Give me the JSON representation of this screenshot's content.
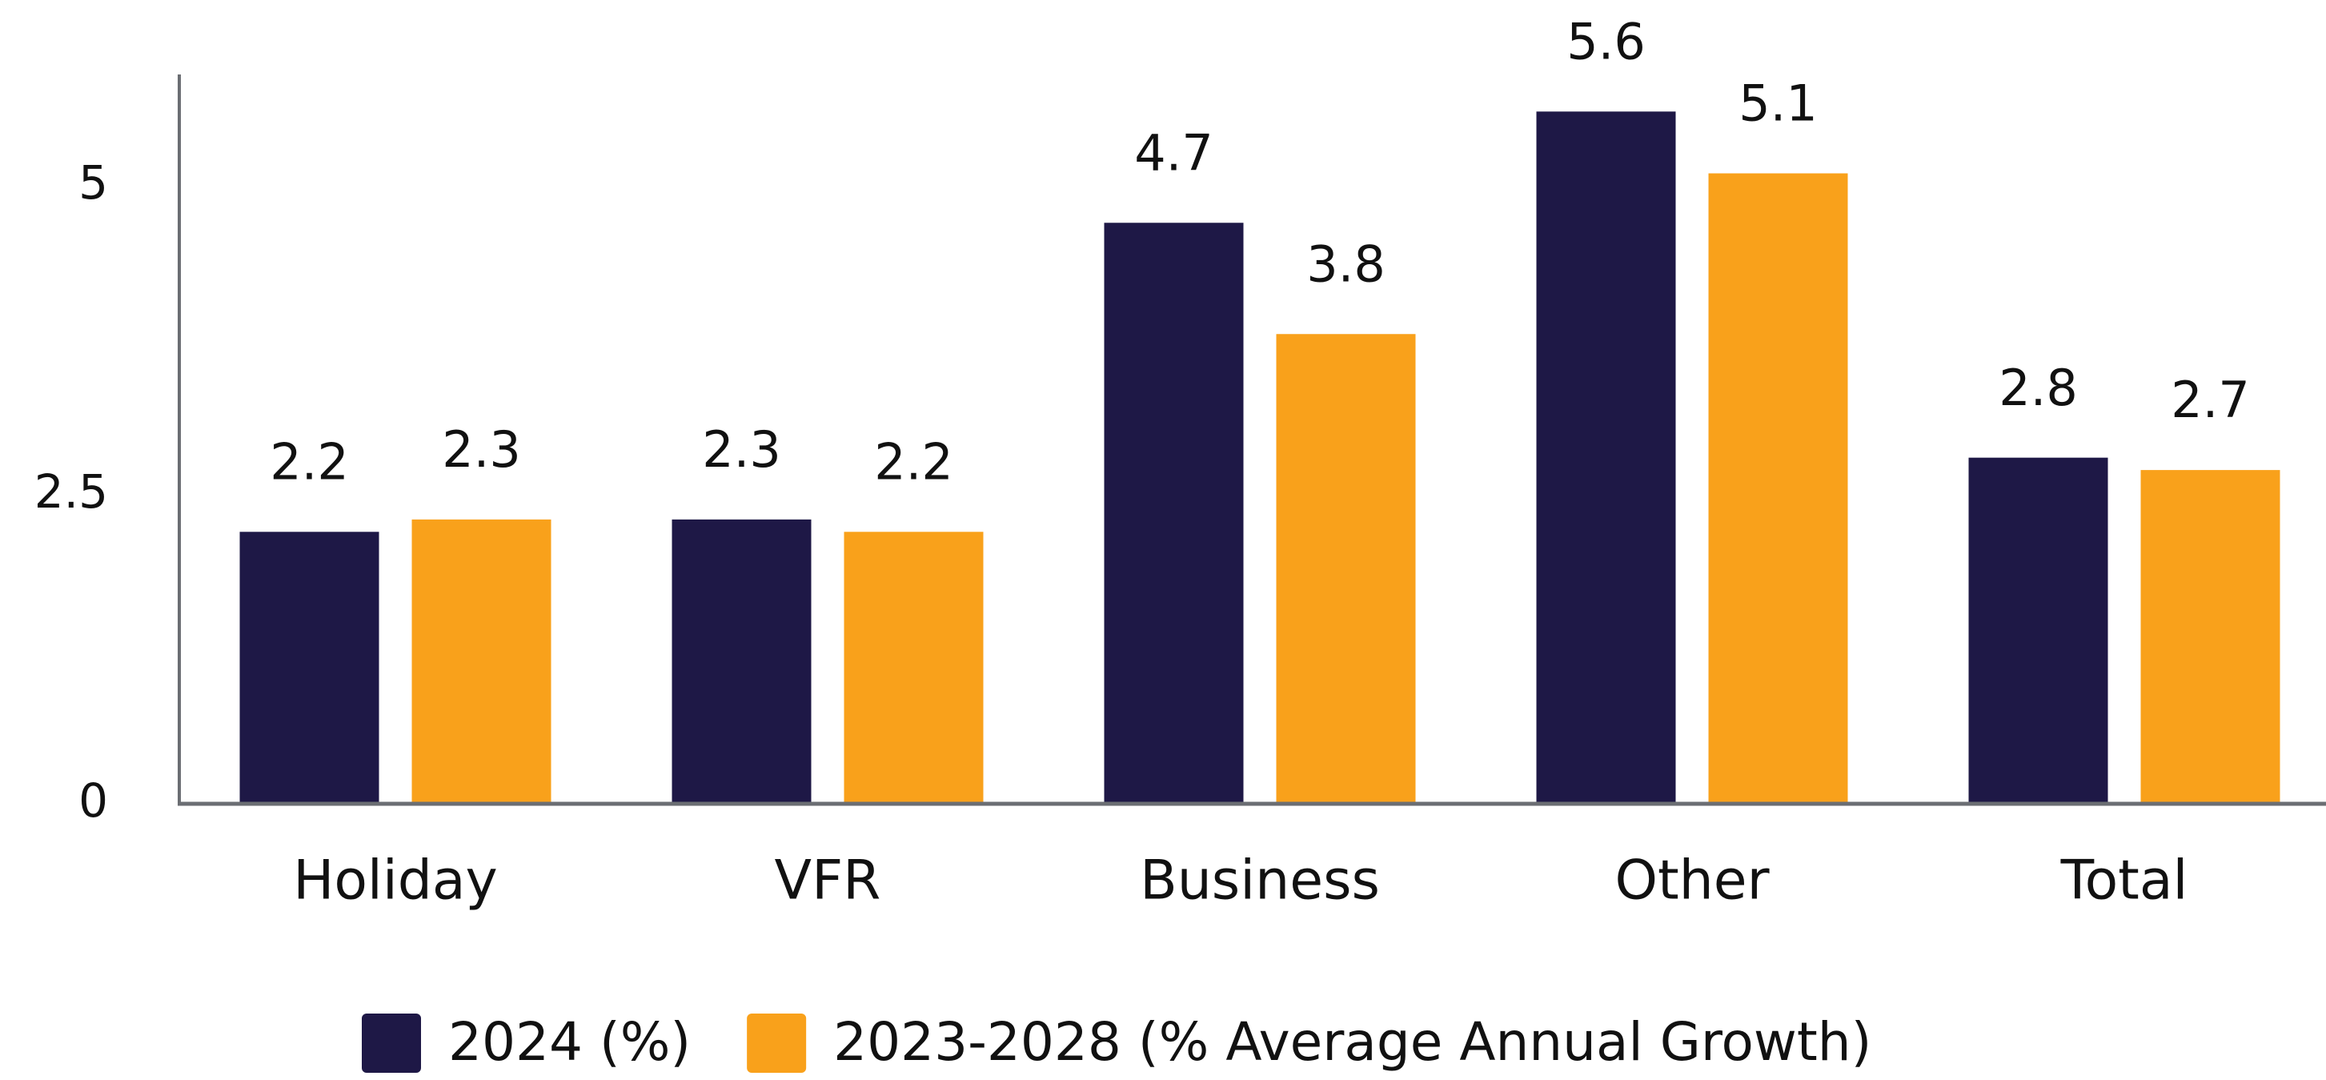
{
  "chart_data": {
    "type": "bar",
    "categories": [
      "Holiday",
      "VFR",
      "Business",
      "Other",
      "Total"
    ],
    "series": [
      {
        "name": "2024 (%)",
        "color": "#1e1846",
        "values": [
          2.2,
          2.3,
          4.7,
          5.6,
          2.8
        ]
      },
      {
        "name": "2023-2028 (% Average Annual Growth)",
        "color": "#f9a11b",
        "values": [
          2.3,
          2.2,
          3.8,
          5.1,
          2.7
        ]
      }
    ],
    "ylim": [
      0,
      5.9
    ],
    "yticks": [
      0,
      2.5,
      5
    ],
    "grid": false,
    "legend": "bottom"
  }
}
